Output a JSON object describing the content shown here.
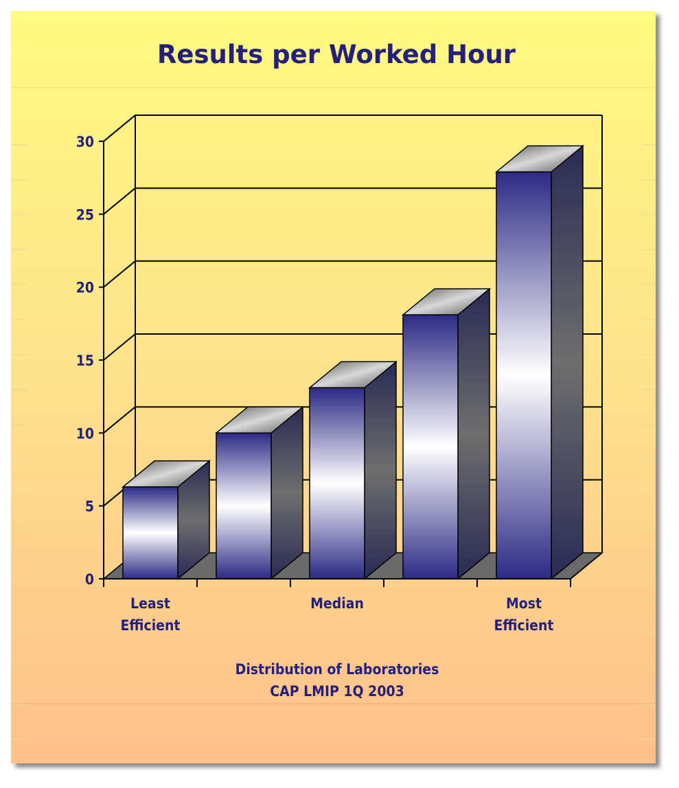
{
  "chart_data": {
    "type": "bar",
    "title": "Results per Worked Hour",
    "categories": [
      "Least Efficient",
      "",
      "Median",
      "",
      "Most Efficient"
    ],
    "values": [
      6.3,
      10,
      13.1,
      18.1,
      27.9
    ],
    "ylim": [
      0,
      30
    ],
    "yticks": [
      0,
      5,
      10,
      15,
      20,
      25,
      30
    ],
    "footer": [
      "Distribution of Laboratories",
      "CAP LMIP 1Q 2003"
    ],
    "grid": true,
    "colors": {
      "title": "#23207f",
      "bar_dark": "#2c2a85",
      "bar_light": "#ffffff",
      "floor": "#6a6a6a",
      "background_top": "#fffa80",
      "background_bottom": "#ffc08c"
    }
  }
}
